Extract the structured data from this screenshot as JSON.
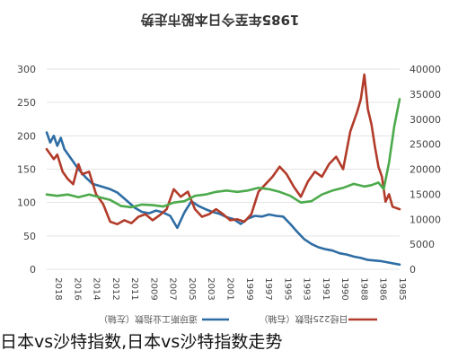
{
  "caption": "日本vs沙特指数,日本vs沙特指数走势",
  "chart_data": {
    "type": "line",
    "title": "1985年至今日本股市走势",
    "x_ticks": [
      "2018",
      "2016",
      "2014",
      "2012",
      "2011",
      "2009",
      "2007",
      "2005",
      "2003",
      "2001",
      "1999",
      "1997",
      "1995",
      "1993",
      "1991",
      "1990",
      "1988",
      "1986",
      "1985"
    ],
    "x_tick_orientation": "rotated-180",
    "left_axis": {
      "ticks": [
        "300",
        "250",
        "200",
        "150",
        "100",
        "50",
        "0"
      ],
      "ylim": [
        0,
        300
      ]
    },
    "right_axis": {
      "ticks": [
        "40000",
        "35000",
        "30000",
        "25000",
        "20000",
        "15000",
        "10000",
        "5000",
        "0"
      ],
      "ylim": [
        0,
        40000
      ]
    },
    "grid": "horizontal",
    "legend_position": "bottom",
    "series": [
      {
        "name": "道琼斯工业指数（左轴）",
        "axis": "left",
        "color": "#2e6da4",
        "points": [
          [
            0,
            205
          ],
          [
            0.01,
            190
          ],
          [
            0.02,
            200
          ],
          [
            0.03,
            185
          ],
          [
            0.04,
            197
          ],
          [
            0.05,
            180
          ],
          [
            0.07,
            165
          ],
          [
            0.09,
            150
          ],
          [
            0.11,
            138
          ],
          [
            0.13,
            128
          ],
          [
            0.15,
            125
          ],
          [
            0.18,
            120
          ],
          [
            0.2,
            115
          ],
          [
            0.22,
            106
          ],
          [
            0.25,
            92
          ],
          [
            0.27,
            86
          ],
          [
            0.29,
            84
          ],
          [
            0.31,
            88
          ],
          [
            0.33,
            85
          ],
          [
            0.35,
            80
          ],
          [
            0.37,
            62
          ],
          [
            0.39,
            85
          ],
          [
            0.41,
            102
          ],
          [
            0.43,
            95
          ],
          [
            0.45,
            90
          ],
          [
            0.47,
            86
          ],
          [
            0.49,
            83
          ],
          [
            0.51,
            78
          ],
          [
            0.53,
            75
          ],
          [
            0.55,
            68
          ],
          [
            0.57,
            76
          ],
          [
            0.59,
            80
          ],
          [
            0.61,
            79
          ],
          [
            0.63,
            82
          ],
          [
            0.65,
            80
          ],
          [
            0.67,
            79
          ],
          [
            0.69,
            68
          ],
          [
            0.71,
            56
          ],
          [
            0.73,
            45
          ],
          [
            0.75,
            38
          ],
          [
            0.77,
            33
          ],
          [
            0.79,
            30
          ],
          [
            0.81,
            28
          ],
          [
            0.83,
            24
          ],
          [
            0.85,
            22
          ],
          [
            0.87,
            19
          ],
          [
            0.89,
            17
          ],
          [
            0.91,
            14
          ],
          [
            0.93,
            13
          ],
          [
            0.95,
            12
          ],
          [
            0.97,
            10
          ],
          [
            1.0,
            7
          ]
        ]
      },
      {
        "name": "日经225指数（右轴）",
        "axis": "right",
        "color": "#b23b2a",
        "points": [
          [
            0,
            24000
          ],
          [
            0.02,
            22000
          ],
          [
            0.03,
            22900
          ],
          [
            0.045,
            19500
          ],
          [
            0.06,
            18000
          ],
          [
            0.075,
            17000
          ],
          [
            0.09,
            21000
          ],
          [
            0.1,
            19000
          ],
          [
            0.12,
            19500
          ],
          [
            0.14,
            15000
          ],
          [
            0.16,
            13000
          ],
          [
            0.18,
            9500
          ],
          [
            0.2,
            9000
          ],
          [
            0.22,
            9800
          ],
          [
            0.24,
            9200
          ],
          [
            0.26,
            10500
          ],
          [
            0.28,
            11000
          ],
          [
            0.3,
            9800
          ],
          [
            0.32,
            10800
          ],
          [
            0.34,
            12000
          ],
          [
            0.36,
            16000
          ],
          [
            0.38,
            14500
          ],
          [
            0.4,
            15500
          ],
          [
            0.42,
            12000
          ],
          [
            0.44,
            10500
          ],
          [
            0.46,
            11000
          ],
          [
            0.48,
            12000
          ],
          [
            0.5,
            11000
          ],
          [
            0.52,
            9800
          ],
          [
            0.54,
            10000
          ],
          [
            0.56,
            9500
          ],
          [
            0.58,
            11000
          ],
          [
            0.6,
            15500
          ],
          [
            0.62,
            17000
          ],
          [
            0.64,
            18500
          ],
          [
            0.66,
            20500
          ],
          [
            0.68,
            19000
          ],
          [
            0.7,
            16500
          ],
          [
            0.72,
            14500
          ],
          [
            0.74,
            17500
          ],
          [
            0.76,
            19500
          ],
          [
            0.78,
            18500
          ],
          [
            0.8,
            21000
          ],
          [
            0.82,
            22500
          ],
          [
            0.84,
            20000
          ],
          [
            0.86,
            27500
          ],
          [
            0.88,
            31500
          ],
          [
            0.89,
            34000
          ],
          [
            0.9,
            38900
          ],
          [
            0.91,
            32000
          ],
          [
            0.92,
            29000
          ],
          [
            0.93,
            24500
          ],
          [
            0.94,
            20500
          ],
          [
            0.95,
            18500
          ],
          [
            0.96,
            13500
          ],
          [
            0.97,
            15000
          ],
          [
            0.98,
            12500
          ],
          [
            1.0,
            12000
          ]
        ]
      },
      {
        "name": "",
        "axis": "left",
        "color": "#4caa4c",
        "points": [
          [
            0,
            112
          ],
          [
            0.03,
            110
          ],
          [
            0.06,
            112
          ],
          [
            0.09,
            108
          ],
          [
            0.12,
            112
          ],
          [
            0.15,
            108
          ],
          [
            0.18,
            104
          ],
          [
            0.21,
            95
          ],
          [
            0.24,
            93
          ],
          [
            0.27,
            97
          ],
          [
            0.3,
            96
          ],
          [
            0.33,
            94
          ],
          [
            0.36,
            100
          ],
          [
            0.39,
            102
          ],
          [
            0.42,
            110
          ],
          [
            0.45,
            112
          ],
          [
            0.48,
            116
          ],
          [
            0.51,
            118
          ],
          [
            0.54,
            116
          ],
          [
            0.57,
            118
          ],
          [
            0.6,
            122
          ],
          [
            0.63,
            120
          ],
          [
            0.66,
            116
          ],
          [
            0.69,
            110
          ],
          [
            0.72,
            100
          ],
          [
            0.75,
            102
          ],
          [
            0.78,
            112
          ],
          [
            0.81,
            118
          ],
          [
            0.84,
            122
          ],
          [
            0.87,
            128
          ],
          [
            0.9,
            124
          ],
          [
            0.92,
            126
          ],
          [
            0.94,
            130
          ],
          [
            0.955,
            120
          ],
          [
            0.97,
            160
          ],
          [
            0.985,
            215
          ],
          [
            1.0,
            255
          ]
        ]
      }
    ]
  }
}
